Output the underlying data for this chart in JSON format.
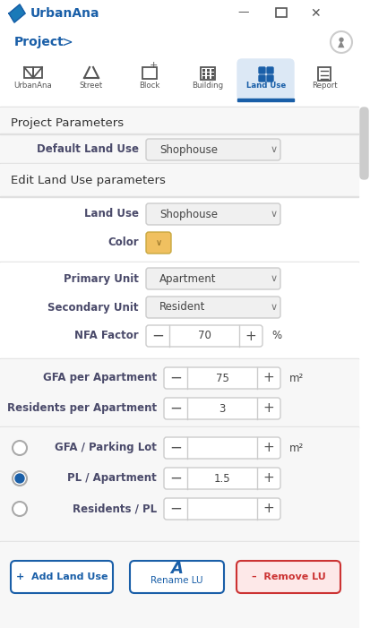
{
  "title": "UrbanAna",
  "bg_color": "#f5f5f5",
  "panel_bg": "#ffffff",
  "header_bg": "#ffffff",
  "tab_active_bg": "#dce8f5",
  "tab_active_color": "#1a5fa8",
  "section_title_color": "#333333",
  "label_color": "#4a4a6a",
  "dropdown_border": "#cccccc",
  "input_border": "#cccccc",
  "divider_color": "#e0e0e0",
  "blue_color": "#1a5fa8",
  "color_swatch": "#f0c060",
  "btn_remove_bg": "#fde8e8",
  "btn_remove_border": "#cc3333",
  "tabs": [
    "UrbanAna",
    "Street",
    "Block",
    "Building",
    "Land Use",
    "Report"
  ],
  "active_tab": 4,
  "project_params_title": "Project Parameters",
  "default_lu_label": "Default Land Use",
  "default_lu_value": "Shophouse",
  "edit_section_title": "Edit Land Use parameters",
  "land_use_label": "Land Use",
  "land_use_value": "Shophouse",
  "color_label": "Color",
  "primary_unit_label": "Primary Unit",
  "primary_unit_value": "Apartment",
  "secondary_unit_label": "Secondary Unit",
  "secondary_unit_value": "Resident",
  "nfa_factor_label": "NFA Factor",
  "nfa_factor_value": "70",
  "nfa_factor_unit": "%",
  "gfa_apt_label": "GFA per Apartment",
  "gfa_apt_value": "75",
  "gfa_apt_unit": "m²",
  "res_apt_label": "Residents per Apartment",
  "res_apt_value": "3",
  "gfa_parking_label": "GFA / Parking Lot",
  "gfa_parking_unit": "m²",
  "pl_apt_label": "PL / Apartment",
  "pl_apt_value": "1.5",
  "res_pl_label": "Residents / PL",
  "btn_add_label": "+  Add Land Use",
  "btn_rename_label": "Rename LU",
  "btn_remove_label": "–  Remove LU",
  "scrollbar_color": "#cccccc"
}
